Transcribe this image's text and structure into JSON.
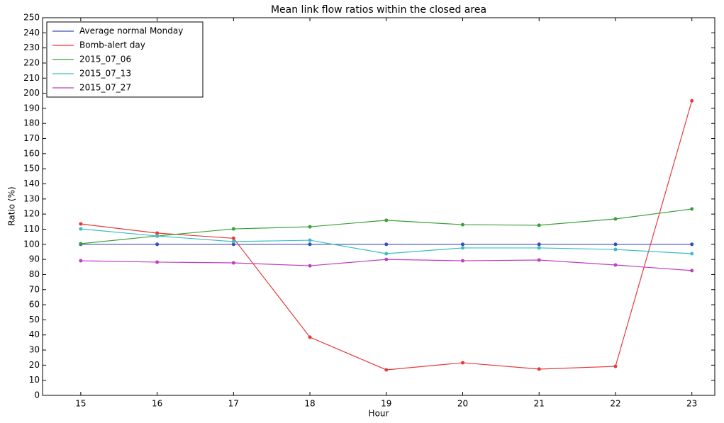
{
  "chart_data": {
    "type": "line",
    "title": "Mean link flow ratios within the closed area",
    "x_label": "Hour",
    "y_label": "Ratio (%)",
    "x": [
      15,
      16,
      17,
      18,
      19,
      20,
      21,
      22,
      23
    ],
    "series": [
      {
        "name": "Average normal Monday",
        "color": "#3b4cc0",
        "values": [
          100,
          100,
          100,
          100,
          100,
          100,
          100,
          100,
          100
        ]
      },
      {
        "name": "Bomb-alert day",
        "color": "#e8393a",
        "values": [
          113.5,
          107.4,
          104,
          38.5,
          16.9,
          21.6,
          17.4,
          19.2,
          195
        ]
      },
      {
        "name": "2015_07_06",
        "color": "#3aa03a",
        "values": [
          100.4,
          105.5,
          110.2,
          111.6,
          115.9,
          113,
          112.6,
          116.8,
          123.4
        ]
      },
      {
        "name": "2015_07_13",
        "color": "#3bbfbf",
        "values": [
          110.2,
          105.5,
          101.8,
          102.7,
          93.8,
          97.6,
          97.6,
          96.6,
          93.8
        ]
      },
      {
        "name": "2015_07_27",
        "color": "#bf3fbf",
        "values": [
          89.1,
          88.2,
          87.7,
          85.8,
          90,
          89.1,
          89.6,
          86.3,
          82.6
        ]
      }
    ],
    "xlim": [
      14.5,
      23.3
    ],
    "ylim": [
      0,
      250
    ],
    "xticks": [
      15,
      16,
      17,
      18,
      19,
      20,
      21,
      22,
      23
    ],
    "yticks": [
      0,
      10,
      20,
      30,
      40,
      50,
      60,
      70,
      80,
      90,
      100,
      110,
      120,
      130,
      140,
      150,
      160,
      170,
      180,
      190,
      200,
      210,
      220,
      230,
      240,
      250
    ],
    "grid": false,
    "legend": "upper-left"
  }
}
